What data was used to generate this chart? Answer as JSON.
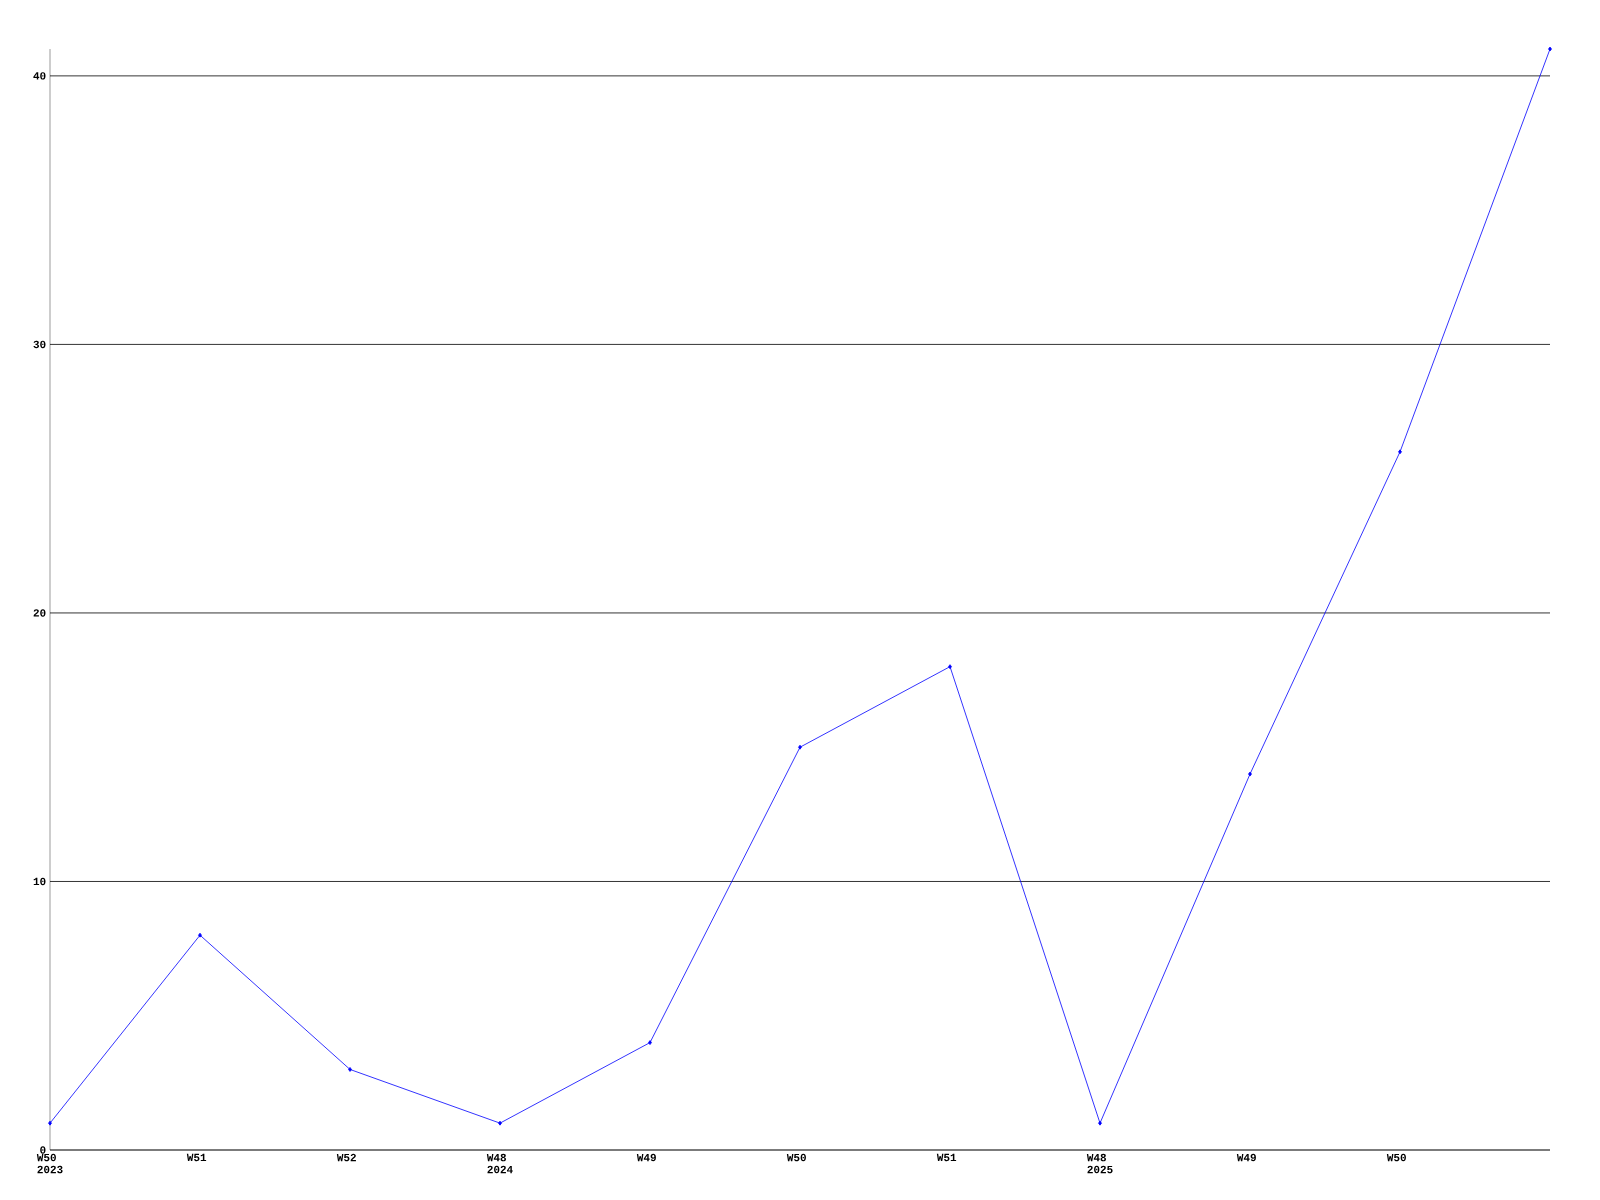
{
  "chart_data": {
    "type": "line",
    "categories": [
      "W50 2023",
      "W51",
      "W52",
      "W48 2024",
      "W49",
      "W50",
      "W51",
      "W48 2025",
      "W49",
      "W50",
      null
    ],
    "values": [
      1,
      8,
      3,
      1,
      4,
      15,
      18,
      1,
      14,
      26,
      41
    ],
    "color": "#0000ff",
    "ylim": [
      0,
      41
    ],
    "yticks": [
      0,
      10,
      20,
      30,
      40
    ],
    "grid": "y",
    "marker": "diamond",
    "line_style": "solid"
  }
}
